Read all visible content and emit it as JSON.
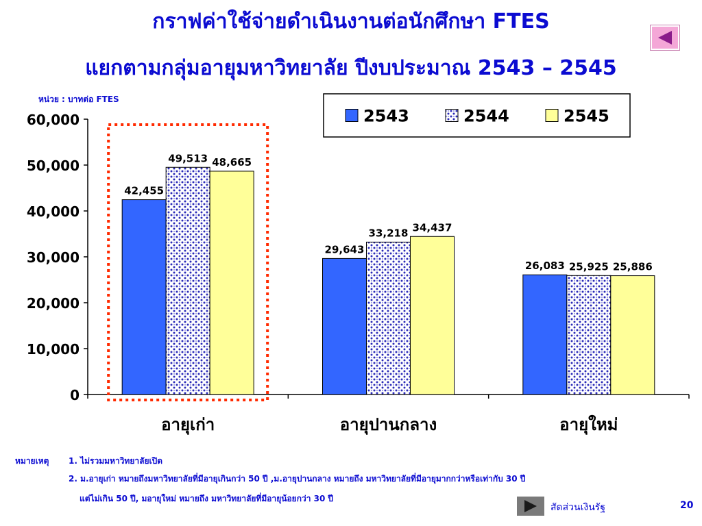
{
  "title_line1": "กราฟค่าใช้จ่ายดำเนินงานต่อนักศึกษา FTES",
  "title_line2": "แยกตามกลุ่มอายุมหาวิทยาลัย ปีงบประมาณ 2543 – 2545",
  "unit_label": "หน่วย : บาทต่อ FTES",
  "chart_data": {
    "type": "bar",
    "categories": [
      "อายุเก่า",
      "อายุปานกลาง",
      "อายุใหม่"
    ],
    "series": [
      {
        "name": "2543",
        "values": [
          42455,
          29643,
          26083
        ],
        "labels": [
          "42,455",
          "29,643",
          "26,083"
        ],
        "color": "#3366ff",
        "pattern": "solid"
      },
      {
        "name": "2544",
        "values": [
          49513,
          33218,
          25925
        ],
        "labels": [
          "49,513",
          "33,218",
          "25,925"
        ],
        "color": "#ffffff",
        "pattern": "dotted-blue"
      },
      {
        "name": "2545",
        "values": [
          48665,
          34437,
          25886
        ],
        "labels": [
          "48,665",
          "34,437",
          "25,886"
        ],
        "color": "#ffff99",
        "pattern": "solid"
      }
    ],
    "ylim": [
      0,
      60000
    ],
    "yticks": [
      0,
      10000,
      20000,
      30000,
      40000,
      50000,
      60000
    ],
    "ytick_labels": [
      "0",
      "10,000",
      "20,000",
      "30,000",
      "40,000",
      "50,000",
      "60,000"
    ],
    "grid": false,
    "legend_position": "top-right",
    "highlight_category": "อายุเก่า",
    "highlight_color": "#ff2a00"
  },
  "notes": {
    "label": "หมายเหตุ",
    "note1": "1. ไม่รวมมหาวิทยาลัยเปิด",
    "note2_line1": "2.  ม.อายุเก่า หมายถึงมหาวิทยาลัยที่มีอายุเกินกว่า 50 ปี ,ม.อายุปานกลาง หมายถึง มหาวิทยาลัยที่มีอายุมากกว่าหรือเท่ากับ 30 ปี",
    "note2_line2": "แต่ไม่เกิน  50 ปี, มอายุใหม่ หมายถึง มหาวิทยาลัยที่มีอายุน้อยกว่า 30 ปี"
  },
  "footer": {
    "link_label": "สัดส่วนเงินรัฐ",
    "page_number": "20"
  },
  "icons": {
    "back": "back-triangle-icon",
    "next": "next-triangle-icon"
  }
}
